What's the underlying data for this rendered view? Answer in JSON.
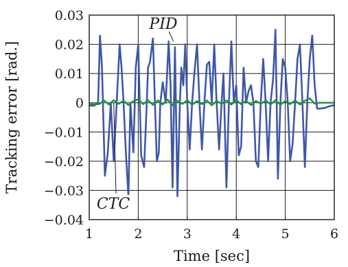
{
  "chart_data": {
    "type": "line",
    "xlabel": "Time [sec]",
    "ylabel": "Tracking error [rad.]",
    "xlim": [
      1,
      6
    ],
    "ylim": [
      -0.04,
      0.03
    ],
    "xticks": [
      "1",
      "2",
      "3",
      "4",
      "5",
      "6"
    ],
    "yticks": [
      "0.03",
      "0.02",
      "0.01",
      "0",
      "−0.01",
      "−0.02",
      "−0.03",
      "−0.04"
    ],
    "grid": true,
    "annotations": [
      {
        "text": "PID",
        "series": 0,
        "target": [
          2.72,
          0.021
        ]
      },
      {
        "text": "CTC",
        "series": 1,
        "target": [
          1.5,
          0.0
        ]
      }
    ],
    "series": [
      {
        "color": "#3f57a8",
        "x": [
          1.0,
          1.1,
          1.18,
          1.22,
          1.26,
          1.32,
          1.38,
          1.44,
          1.5,
          1.56,
          1.62,
          1.66,
          1.7,
          1.75,
          1.8,
          1.84,
          1.9,
          1.95,
          2.0,
          2.06,
          2.12,
          2.17,
          2.2,
          2.24,
          2.3,
          2.35,
          2.38,
          2.42,
          2.45,
          2.5,
          2.56,
          2.62,
          2.66,
          2.7,
          2.75,
          2.8,
          2.85,
          2.88,
          2.92,
          2.96,
          3.0,
          3.05,
          3.1,
          3.15,
          3.2,
          3.25,
          3.3,
          3.35,
          3.4,
          3.45,
          3.5,
          3.55,
          3.6,
          3.65,
          3.7,
          3.74,
          3.8,
          3.85,
          3.9,
          3.95,
          4.0,
          4.05,
          4.1,
          4.15,
          4.2,
          4.25,
          4.3,
          4.35,
          4.4,
          4.45,
          4.5,
          4.55,
          4.6,
          4.65,
          4.7,
          4.75,
          4.8,
          4.85,
          4.9,
          4.95,
          5.0,
          5.05,
          5.1,
          5.15,
          5.2,
          5.25,
          5.3,
          5.35,
          5.4,
          5.45,
          5.5,
          5.55,
          5.6,
          5.65,
          5.7,
          5.8,
          5.9,
          6.0
        ],
        "y": [
          -0.001,
          -0.001,
          0.0,
          0.023,
          0.012,
          -0.025,
          -0.017,
          0.0,
          -0.02,
          0.0,
          0.02,
          0.012,
          0.0,
          -0.018,
          -0.032,
          0.0,
          -0.017,
          0.012,
          0.02,
          -0.018,
          -0.022,
          -0.002,
          0.012,
          0.014,
          0.022,
          -0.005,
          -0.02,
          -0.017,
          0.0,
          0.007,
          0.0,
          0.021,
          0.006,
          -0.029,
          0.019,
          -0.032,
          0.0,
          0.012,
          0.006,
          0.02,
          0.0,
          -0.016,
          0.0,
          0.011,
          0.02,
          0.0,
          -0.016,
          0.0,
          0.013,
          0.014,
          0.0,
          0.02,
          0.0,
          -0.016,
          0.0,
          0.01,
          -0.029,
          0.0,
          0.021,
          0.0,
          0.006,
          -0.018,
          -0.015,
          0.012,
          0.0,
          0.004,
          0.006,
          0.0,
          -0.02,
          -0.022,
          0.0,
          0.015,
          0.0,
          -0.02,
          0.0,
          0.008,
          0.025,
          -0.026,
          0.0,
          0.015,
          0.012,
          0.0,
          -0.02,
          -0.014,
          0.0,
          0.015,
          0.02,
          0.0,
          -0.022,
          0.0,
          0.015,
          0.023,
          0.006,
          -0.002,
          -0.002,
          -0.0018,
          -0.0012,
          -0.0008
        ]
      },
      {
        "color": "#1f8f3a",
        "x": [
          1.0,
          1.2,
          1.3,
          1.4,
          1.5,
          1.6,
          1.7,
          1.8,
          1.9,
          2.0,
          2.1,
          2.2,
          2.3,
          2.4,
          2.5,
          2.6,
          2.7,
          2.8,
          2.9,
          3.0,
          3.1,
          3.2,
          3.3,
          3.4,
          3.5,
          3.6,
          3.7,
          3.8,
          3.9,
          4.0,
          4.1,
          4.2,
          4.3,
          4.4,
          4.5,
          4.6,
          4.7,
          4.8,
          4.9,
          5.0,
          5.1,
          5.2,
          5.3,
          5.4,
          5.5,
          5.6,
          5.7,
          5.8,
          5.9,
          6.0
        ],
        "y": [
          -0.0005,
          -0.0005,
          0.0008,
          -0.0006,
          0.0009,
          -0.0004,
          0.0007,
          -0.0008,
          0.0006,
          0.0012,
          -0.0005,
          0.0009,
          -0.0007,
          0.0008,
          -0.0006,
          0.0011,
          -0.0009,
          0.0007,
          -0.0004,
          0.0009,
          -0.0007,
          0.0006,
          -0.0005,
          0.0008,
          -0.0009,
          0.0006,
          -0.0004,
          0.0008,
          -0.0006,
          0.0009,
          -0.0005,
          0.0007,
          -0.0008,
          0.0006,
          -0.0004,
          0.0008,
          -0.0006,
          0.0009,
          -0.0007,
          0.0006,
          -0.0005,
          0.0008,
          -0.0006,
          0.0007,
          0.0015,
          -0.0003,
          0.0,
          0.0,
          0.0,
          0.0
        ]
      }
    ]
  }
}
